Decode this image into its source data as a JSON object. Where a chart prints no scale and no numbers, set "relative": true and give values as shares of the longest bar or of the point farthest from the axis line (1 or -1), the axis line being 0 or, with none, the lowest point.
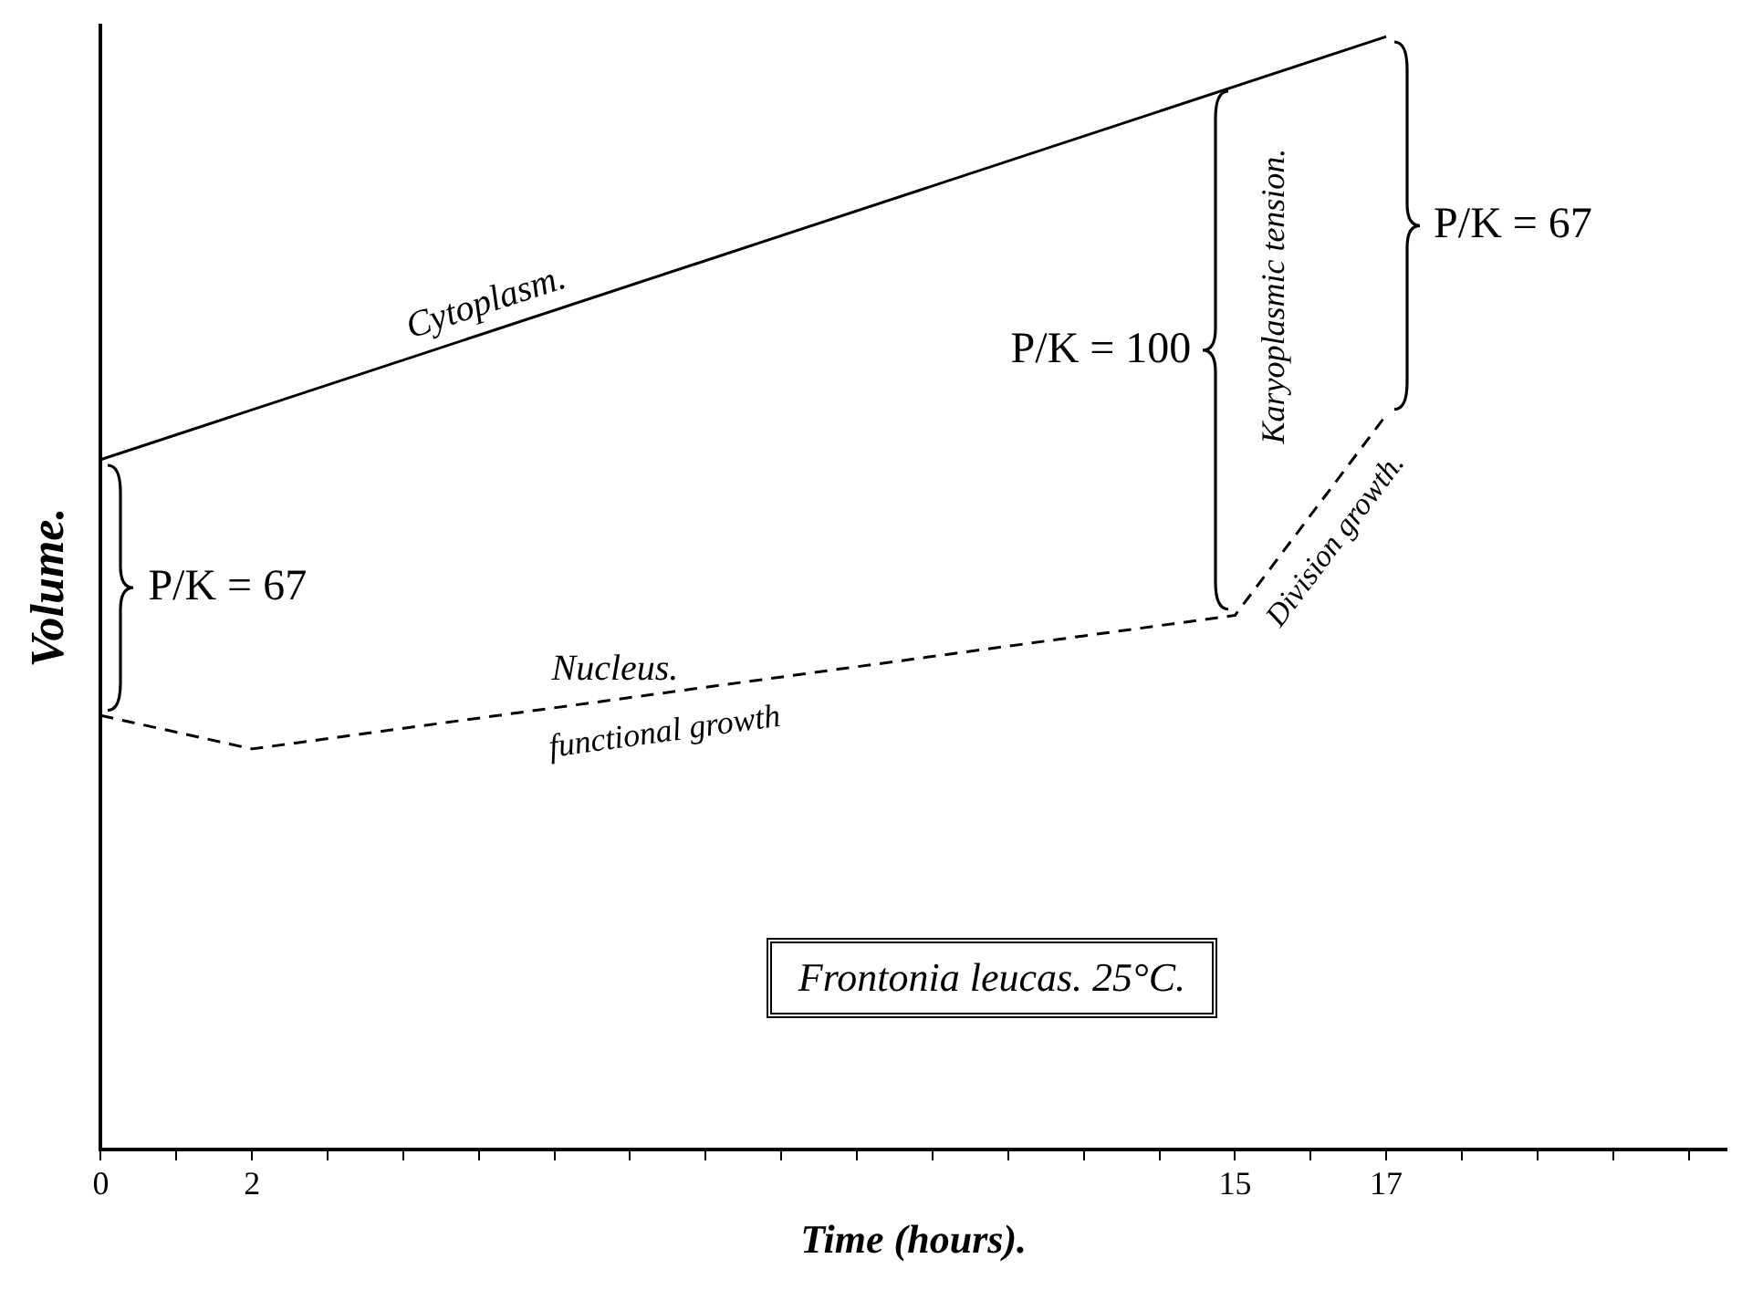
{
  "chart_data": {
    "type": "line",
    "xlabel": "Time (hours).",
    "ylabel": "Volume.",
    "relative": true,
    "xlim": [
      0,
      21.5
    ],
    "xticks": [
      0,
      {
        "value": 1,
        "label": null
      },
      2,
      {
        "value": 3,
        "label": null
      },
      {
        "value": 4,
        "label": null
      },
      {
        "value": 5,
        "label": null
      },
      {
        "value": 6,
        "label": null
      },
      {
        "value": 7,
        "label": null
      },
      {
        "value": 8,
        "label": null
      },
      {
        "value": 9,
        "label": null
      },
      {
        "value": 10,
        "label": null
      },
      {
        "value": 11,
        "label": null
      },
      {
        "value": 12,
        "label": null
      },
      {
        "value": 13,
        "label": null
      },
      {
        "value": 14,
        "label": null
      },
      15,
      {
        "value": 16,
        "label": null
      },
      17,
      {
        "value": 18,
        "label": null
      },
      {
        "value": 19,
        "label": null
      },
      {
        "value": 20,
        "label": null
      },
      {
        "value": 21,
        "label": null
      }
    ],
    "series": [
      {
        "name": "Cytoplasm.",
        "color": "#000000",
        "line_style": "solid",
        "x": [
          0,
          17
        ],
        "values": [
          0.62,
          1
        ]
      },
      {
        "name": "Nucleus.",
        "color": "#000000",
        "line_style": "dashed",
        "x": [
          0,
          2,
          15,
          17
        ],
        "values": [
          0.39,
          0.36,
          0.48,
          0.66
        ]
      }
    ],
    "annotations": [
      "P/K = 67",
      "P/K = 100",
      "P/K = 67",
      "Karyoplasmic tension.",
      "Division growth.",
      "functional growth",
      "Frontonia leucas. 25°C."
    ]
  }
}
